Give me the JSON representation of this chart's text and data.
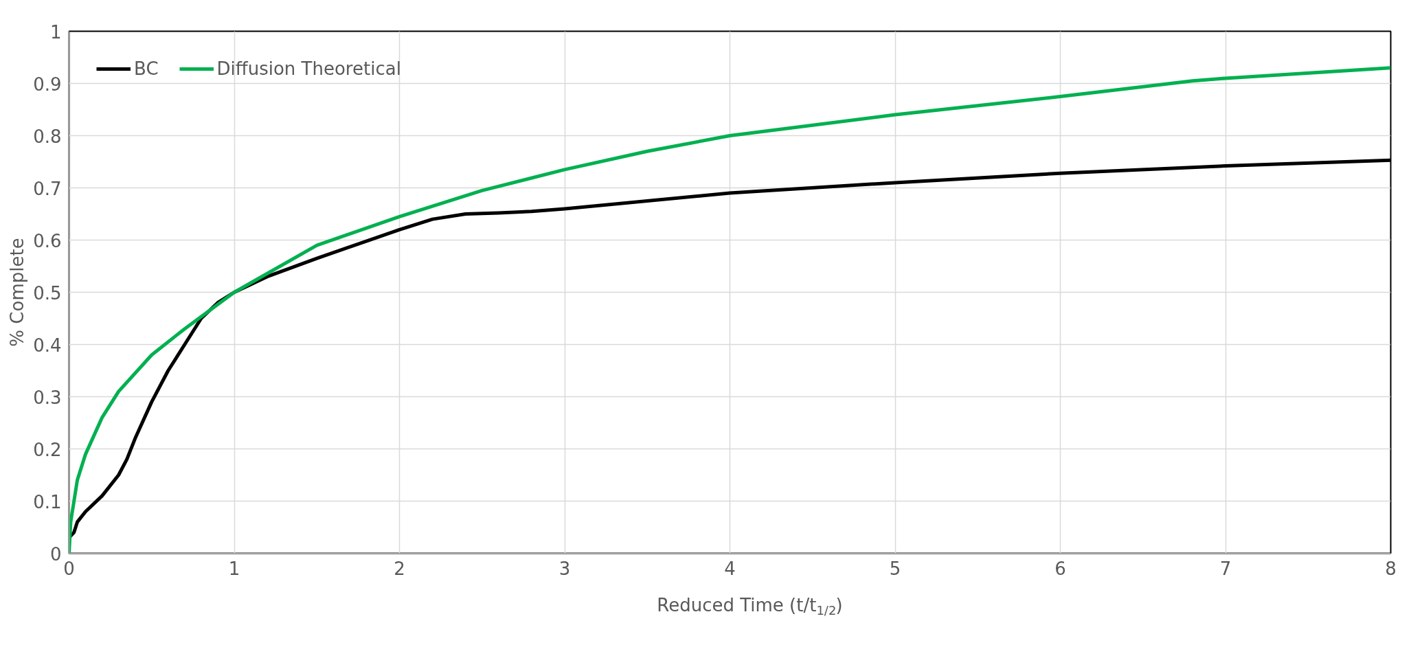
{
  "chart_data": {
    "type": "line",
    "xlabel": "Reduced Time (t/t$_{1/2}$)",
    "ylabel": "% Complete",
    "xlim": [
      0,
      8
    ],
    "ylim": [
      0,
      1
    ],
    "xticks": [
      0,
      1,
      2,
      3,
      4,
      5,
      6,
      7,
      8
    ],
    "yticks": [
      0,
      0.1,
      0.2,
      0.3,
      0.4,
      0.5,
      0.6,
      0.7,
      0.8,
      0.9,
      1
    ],
    "grid": true,
    "legend": "top left",
    "line_style": "solid",
    "series": [
      {
        "name": "BC",
        "color": "#000000",
        "x": [
          0,
          0.03,
          0.05,
          0.1,
          0.2,
          0.3,
          0.35,
          0.4,
          0.5,
          0.6,
          0.7,
          0.8,
          0.9,
          1,
          1.2,
          1.5,
          2,
          2.2,
          2.4,
          2.6,
          2.8,
          3,
          4,
          5,
          6,
          7,
          8
        ],
        "values": [
          0.03,
          0.04,
          0.06,
          0.08,
          0.11,
          0.15,
          0.18,
          0.22,
          0.29,
          0.35,
          0.4,
          0.45,
          0.48,
          0.5,
          0.53,
          0.565,
          0.62,
          0.64,
          0.65,
          0.652,
          0.655,
          0.66,
          0.69,
          0.71,
          0.728,
          0.742,
          0.753
        ]
      },
      {
        "name": "Diffusion Theoretical",
        "color": "#00b050",
        "x": [
          0,
          0.01,
          0.05,
          0.1,
          0.2,
          0.3,
          0.5,
          0.7,
          1,
          1.5,
          2,
          2.5,
          3,
          3.5,
          4,
          5,
          6,
          6.8,
          7,
          8
        ],
        "values": [
          0,
          0.06,
          0.14,
          0.19,
          0.26,
          0.31,
          0.38,
          0.43,
          0.5,
          0.59,
          0.645,
          0.695,
          0.735,
          0.77,
          0.8,
          0.84,
          0.875,
          0.905,
          0.91,
          0.93
        ]
      }
    ]
  }
}
